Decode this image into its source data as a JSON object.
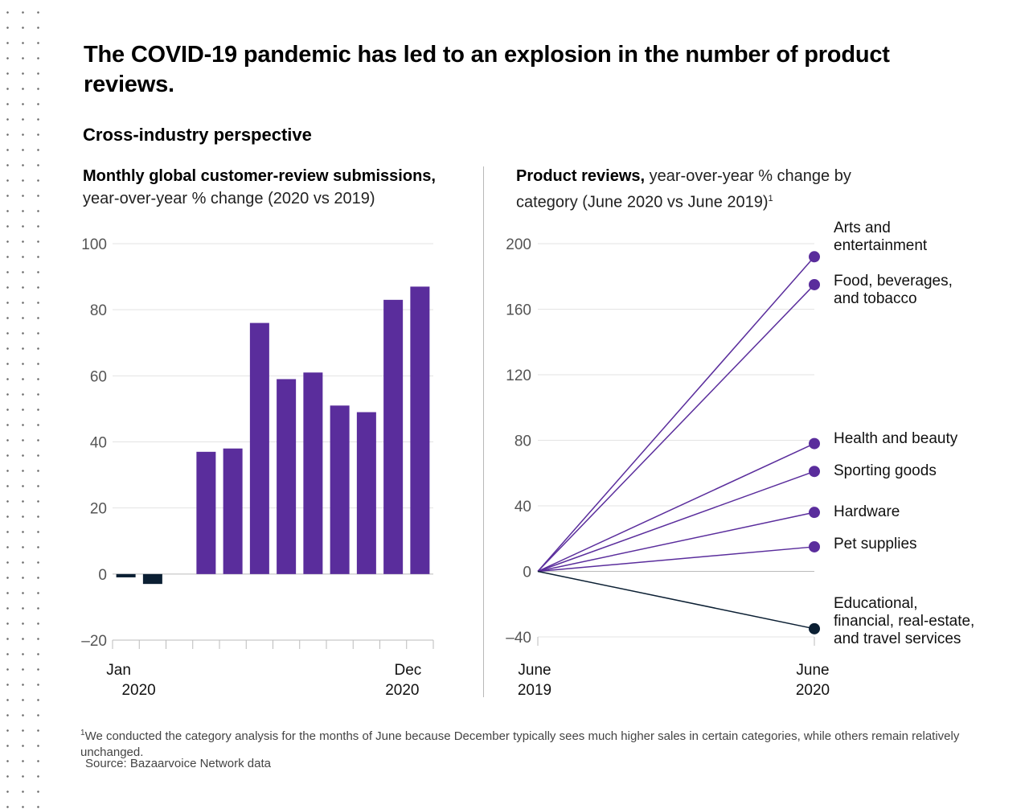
{
  "header": {
    "title": "The COVID-19 pandemic has led to an explosion in the number of product reviews.",
    "subtitle": "Cross-industry perspective"
  },
  "left_panel": {
    "title_bold": "Monthly global customer-review submissions,",
    "title_rest": "year-over-year % change (2020 vs 2019)"
  },
  "right_panel": {
    "title_bold": "Product reviews,",
    "title_rest": "year-over-year % change by category (June 2020 vs June 2019)",
    "footnote_marker": "1"
  },
  "footnote": {
    "marker": "1",
    "text": "We conducted the category analysis for the months of June because December typically sees much higher sales in certain categories, while others remain relatively unchanged.",
    "source": "Source: Bazaarvoice Network data"
  },
  "colors": {
    "positive": "#5a2d9c",
    "negative": "#0b1f33",
    "gridline": "#e3e3e3",
    "axis": "#bbbbbb"
  },
  "chart_data": [
    {
      "type": "bar",
      "categories": [
        "Jan 2020",
        "Feb 2020",
        "Mar 2020",
        "Apr 2020",
        "May 2020",
        "Jun 2020",
        "Jul 2020",
        "Aug 2020",
        "Sep 2020",
        "Oct 2020",
        "Nov 2020",
        "Dec 2020"
      ],
      "values": [
        -1,
        -3,
        0,
        37,
        38,
        76,
        59,
        61,
        51,
        49,
        83,
        87
      ],
      "ylim": [
        -20,
        100
      ],
      "yticks": [
        "100",
        "80",
        "60",
        "40",
        "20",
        "0",
        "–20"
      ],
      "ytick_values": [
        100,
        80,
        60,
        40,
        20,
        0,
        -20
      ],
      "x_label_first": [
        "Jan",
        "2020"
      ],
      "x_label_last": [
        "Dec",
        "2020"
      ],
      "grid": true
    },
    {
      "type": "line",
      "x": [
        "June 2019",
        "June 2020"
      ],
      "x_label_first": [
        "June",
        "2019"
      ],
      "x_label_last": [
        "June",
        "2020"
      ],
      "ylim": [
        -40,
        200
      ],
      "yticks": [
        "200",
        "160",
        "120",
        "80",
        "40",
        "0",
        "–40"
      ],
      "ytick_values": [
        200,
        160,
        120,
        80,
        40,
        0,
        -40
      ],
      "grid": true,
      "series": [
        {
          "name": "Arts and entertainment",
          "values": [
            0,
            192
          ]
        },
        {
          "name": "Food, beverages, and tobacco",
          "values": [
            0,
            175
          ]
        },
        {
          "name": "Health and beauty",
          "values": [
            0,
            78
          ]
        },
        {
          "name": "Sporting goods",
          "values": [
            0,
            61
          ]
        },
        {
          "name": "Hardware",
          "values": [
            0,
            36
          ]
        },
        {
          "name": "Pet supplies",
          "values": [
            0,
            15
          ]
        },
        {
          "name": "Educational, financial, real-estate, and travel services",
          "values": [
            0,
            -35
          ]
        }
      ],
      "series_display_names": [
        "Arts and\nentertainment",
        "Food, beverages,\nand tobacco",
        "Health and beauty",
        "Sporting goods",
        "Hardware",
        "Pet supplies",
        "Educational,\nfinancial, real-estate,\nand travel services"
      ]
    }
  ]
}
